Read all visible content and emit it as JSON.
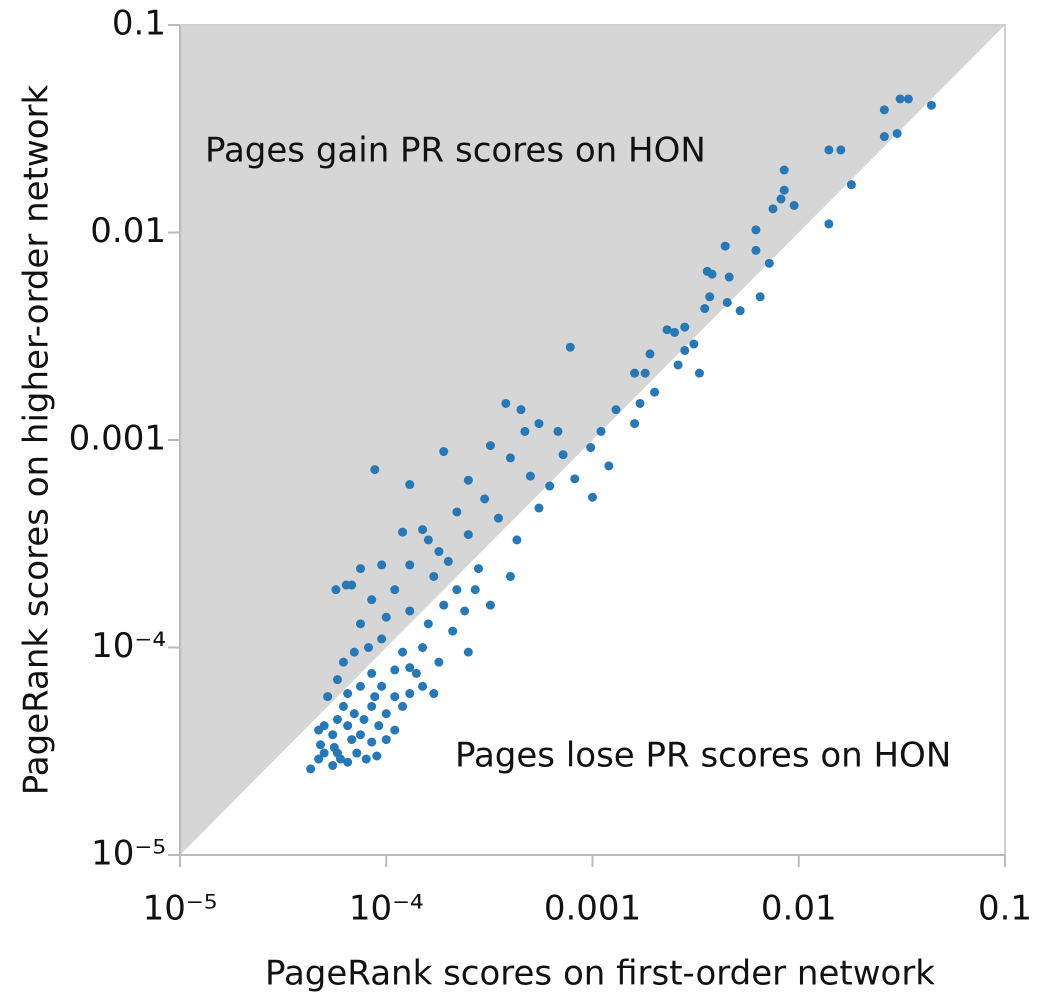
{
  "chart_data": {
    "type": "scatter",
    "xlabel": "PageRank scores on first-order network",
    "ylabel": "PageRank scores on higher-order network",
    "annotations": [
      "Pages gain PR scores on HON",
      "Pages lose PR scores on HON"
    ],
    "xscale": "log",
    "yscale": "log",
    "grid": false,
    "color": "#2678b6",
    "region_color": "#d6d6d6",
    "xlim": [
      1e-05,
      0.1
    ],
    "ylim": [
      1e-05,
      0.1
    ],
    "xticks": [
      {
        "value": 1e-05,
        "label": "10⁻⁵"
      },
      {
        "value": 0.0001,
        "label": "10⁻⁴"
      },
      0.001,
      0.01,
      0.1
    ],
    "yticks": [
      {
        "value": 1e-05,
        "label": "10⁻⁵"
      },
      {
        "value": 0.0001,
        "label": "10⁻⁴"
      },
      0.001,
      0.01,
      0.1
    ],
    "x": [
      0.044,
      0.034,
      0.031,
      0.026,
      0.03,
      0.026,
      0.014,
      0.016,
      0.018,
      0.0085,
      0.0085,
      0.0075,
      0.0095,
      0.0082,
      0.014,
      0.0062,
      0.0044,
      0.0062,
      0.0072,
      0.0036,
      0.0038,
      0.0046,
      0.0065,
      0.0037,
      0.0045,
      0.0052,
      0.0035,
      0.0025,
      0.0023,
      0.0028,
      0.0031,
      0.0028,
      0.0033,
      0.0026,
      0.0019,
      0.0018,
      0.0016,
      0.002,
      0.0017,
      0.0016,
      0.0013,
      0.0011,
      0.00098,
      0.0012,
      0.00078,
      0.00068,
      0.00055,
      0.00047,
      0.00038,
      0.00045,
      0.00072,
      0.00082,
      0.001,
      0.00062,
      0.0005,
      0.0004,
      0.00032,
      0.00025,
      0.0003,
      0.00022,
      0.00019,
      0.00013,
      8.8e-05,
      0.00015,
      0.00018,
      0.00025,
      0.00035,
      0.00043,
      0.00055,
      0.0004,
      0.00032,
      0.00028,
      0.00022,
      0.00017,
      0.00013,
      9.5e-05,
      7.5e-05,
      6.8e-05,
      6.4e-05,
      5.7e-05,
      8.5e-05,
      7.5e-05,
      0.0001,
      0.00013,
      0.00016,
      0.00021,
      0.00025,
      0.00018,
      0.00014,
      0.00012,
      9.5e-05,
      8.2e-05,
      7e-05,
      6.2e-05,
      5.8e-05,
      6.5e-05,
      7.5e-05,
      8.5e-05,
      9.5e-05,
      0.00011,
      0.00013,
      0.00015,
      0.00017,
      0.00012,
      0.0001,
      8.5e-05,
      7e-05,
      5.8e-05,
      5e-05,
      5.5e-05,
      6.5e-05,
      7.8e-05,
      9.2e-05,
      0.00011,
      6.8e-05,
      5.6e-05,
      5e-05,
      4.8e-05,
      6e-05,
      7.2e-05,
      8.5e-05,
      0.0001,
      8e-05,
      6.5e-05,
      5.5e-05,
      4.7e-05,
      4.3e-05,
      5.8e-05,
      9e-05,
      7.5e-05,
      6.2e-05,
      5.2e-05,
      4.7e-05,
      8.8e-05,
      0.00011,
      0.00013,
      0.00015,
      0.00019,
      0.00024,
      0.00027,
      0.0002,
      0.00016,
      0.00012,
      0.00011
    ],
    "values": [
      0.041,
      0.044,
      0.044,
      0.039,
      0.03,
      0.029,
      0.025,
      0.025,
      0.017,
      0.02,
      0.016,
      0.013,
      0.0135,
      0.0145,
      0.011,
      0.0103,
      0.0086,
      0.0082,
      0.0071,
      0.0065,
      0.0063,
      0.0061,
      0.0049,
      0.0049,
      0.0046,
      0.0042,
      0.0043,
      0.0033,
      0.0034,
      0.0035,
      0.0029,
      0.0027,
      0.0021,
      0.0023,
      0.0026,
      0.0021,
      0.0021,
      0.0017,
      0.0015,
      0.0012,
      0.0014,
      0.0011,
      0.00092,
      0.00075,
      0.0028,
      0.0011,
      0.0012,
      0.0011,
      0.0015,
      0.0014,
      0.00085,
      0.00065,
      0.00053,
      0.0006,
      0.00067,
      0.00082,
      0.00094,
      0.00064,
      0.00052,
      0.00045,
      0.00088,
      0.00061,
      0.00072,
      0.00037,
      0.00029,
      0.00035,
      0.00042,
      0.00033,
      0.00047,
      0.00022,
      0.00016,
      0.00024,
      0.00019,
      0.00022,
      0.00025,
      0.00025,
      0.00024,
      0.0002,
      0.0002,
      0.00019,
      0.00017,
      0.00013,
      0.00014,
      0.00015,
      0.00013,
      0.00012,
      9.5e-05,
      8.5e-05,
      7.5e-05,
      9.5e-05,
      0.00011,
      0.0001,
      9.5e-05,
      8.5e-05,
      7e-05,
      6e-05,
      6.5e-05,
      7.5e-05,
      6.5e-05,
      7.8e-05,
      6e-05,
      6.5e-05,
      6e-05,
      5.2e-05,
      4.8e-05,
      5.2e-05,
      4.8e-05,
      4.5e-05,
      4.2e-05,
      3.8e-05,
      4.2e-05,
      4.5e-05,
      4.2e-05,
      4e-05,
      3.6e-05,
      3.3e-05,
      3.1e-05,
      3.4e-05,
      2.9e-05,
      3.1e-05,
      3.5e-05,
      3.6e-05,
      2.9e-05,
      2.8e-05,
      2.7e-05,
      2.9e-05,
      2.6e-05,
      3.1e-05,
      3e-05,
      3.8e-05,
      5.2e-05,
      5.8e-05,
      4e-05,
      5.8e-05,
      5.8e-05,
      8e-05,
      0.0001,
      0.00016,
      0.00015,
      0.00019,
      0.00026,
      0.00033,
      0.00036,
      0.00019
    ]
  }
}
